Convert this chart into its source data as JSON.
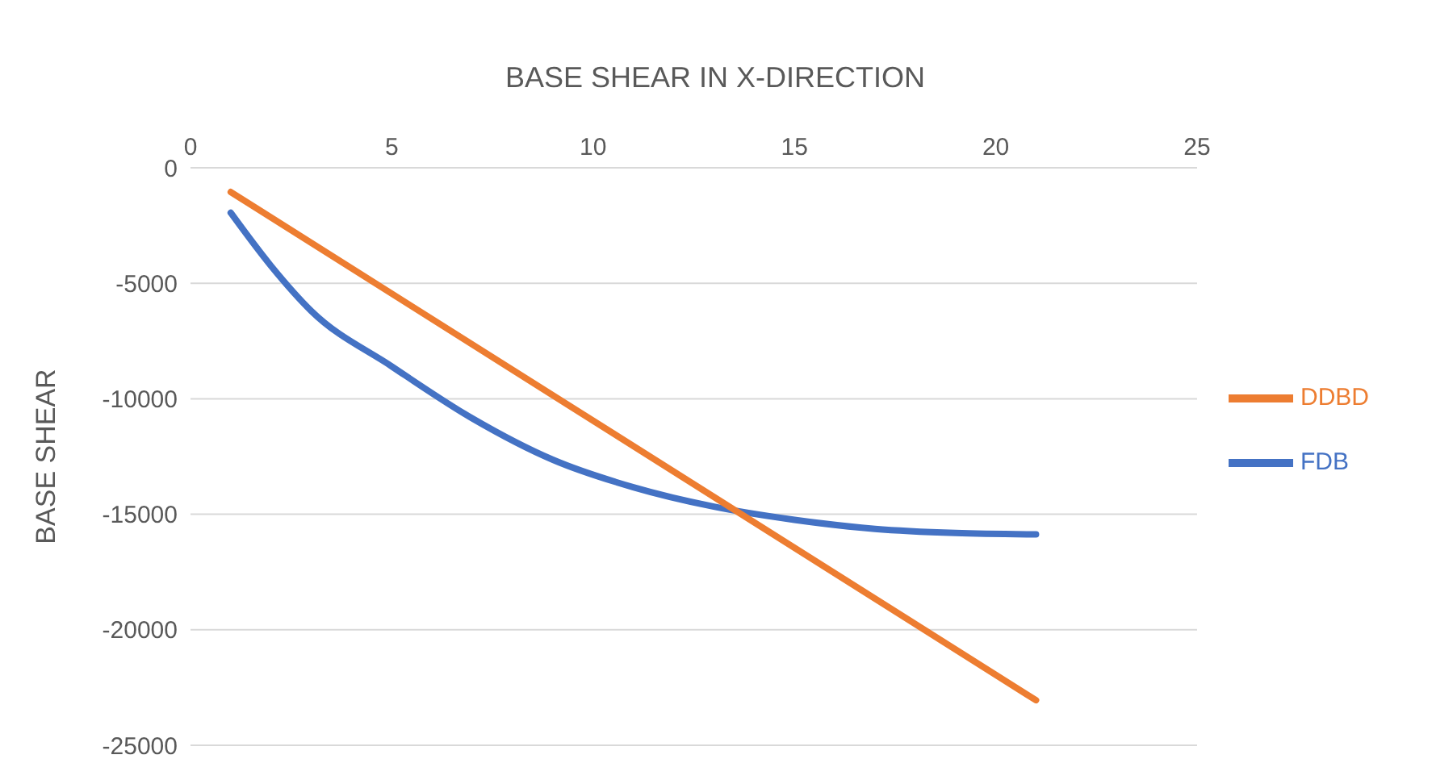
{
  "chart_data": {
    "type": "line",
    "title": "BASE SHEAR IN X-DIRECTION",
    "ylabel": "BASE SHEAR",
    "xlim": [
      0,
      25
    ],
    "xticks": [
      0,
      5,
      10,
      15,
      20,
      25
    ],
    "ylim": [
      -25000,
      0
    ],
    "yticks": [
      -25000,
      -20000,
      -15000,
      -10000,
      -5000,
      0
    ],
    "grid": "y",
    "legend": "right",
    "marker": "none",
    "line_style": "solid",
    "series": [
      {
        "name": "FDB",
        "color": "#4472c4",
        "x": [
          1,
          2,
          3,
          5,
          7,
          9,
          11,
          13,
          15,
          17,
          19,
          21
        ],
        "values": [
          -1950,
          -4250,
          -6200,
          -8600,
          -10850,
          -12640,
          -13830,
          -14670,
          -15240,
          -15630,
          -15810,
          -15870
        ]
      },
      {
        "name": "DDBD",
        "color": "#ed7d31",
        "x": [
          1,
          21
        ],
        "values": [
          -1050,
          -23050
        ]
      }
    ]
  }
}
